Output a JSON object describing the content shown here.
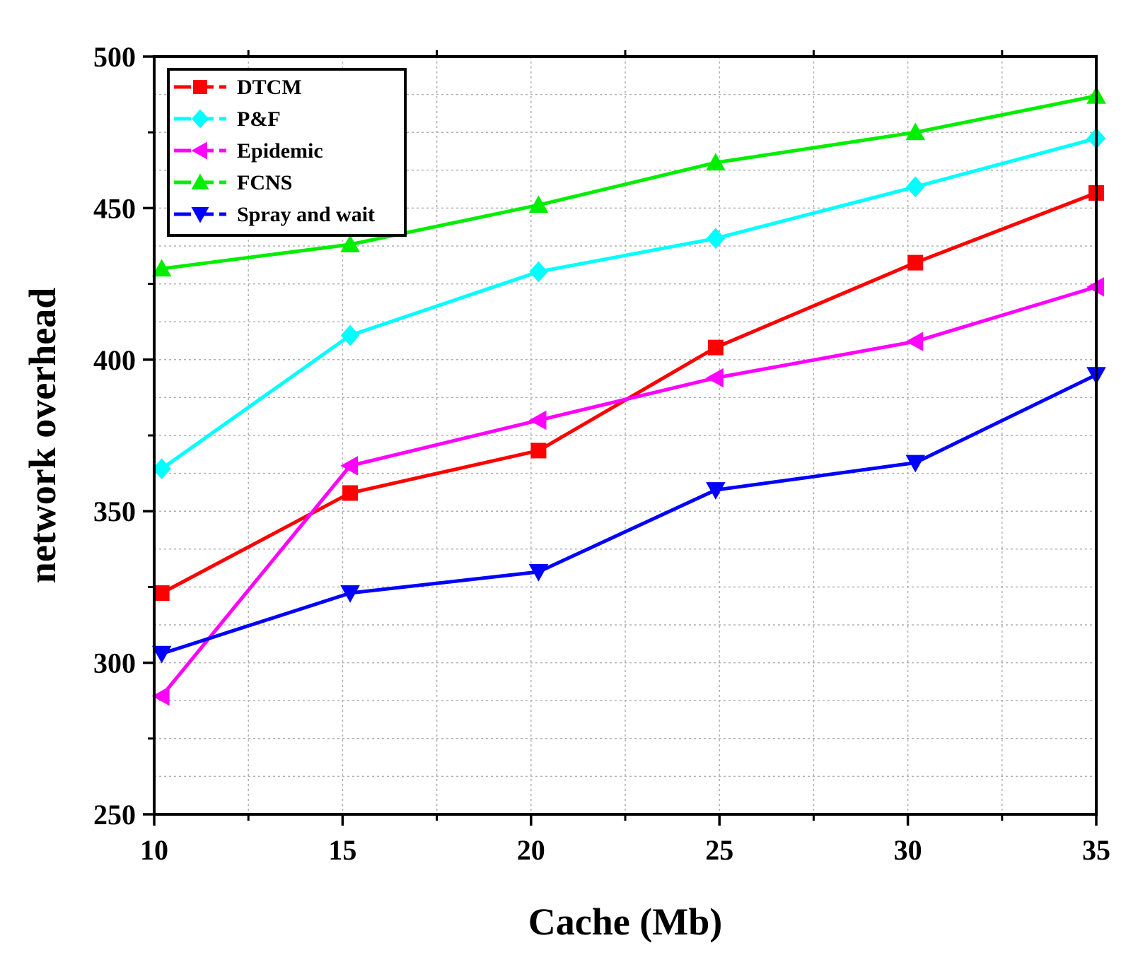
{
  "chart_data": {
    "type": "line",
    "title": "",
    "xlabel": "Cache (Mb)",
    "ylabel": "network overhead",
    "xlim": [
      10,
      35
    ],
    "ylim": [
      250,
      500
    ],
    "x_ticks": [
      "10",
      "15",
      "20",
      "25",
      "30",
      "35"
    ],
    "y_ticks": [
      "250",
      "300",
      "350",
      "400",
      "450",
      "500"
    ],
    "grid": true,
    "legend_position": "top-left",
    "series": [
      {
        "name": "DTCM",
        "color": "#ff0000",
        "marker": "square",
        "x": [
          10.2,
          15.2,
          20.2,
          24.9,
          30.2,
          35
        ],
        "y": [
          323,
          356,
          370,
          404,
          432,
          455
        ]
      },
      {
        "name": "P&F",
        "color": "#00ffff",
        "marker": "diamond",
        "x": [
          10.2,
          15.2,
          20.2,
          24.9,
          30.2,
          35
        ],
        "y": [
          364,
          408,
          429,
          440,
          457,
          473
        ]
      },
      {
        "name": "Epidemic",
        "color": "#ff00ff",
        "marker": "triangle-left",
        "x": [
          10.2,
          15.2,
          20.2,
          24.9,
          30.2,
          35
        ],
        "y": [
          289,
          365,
          380,
          394,
          406,
          424
        ]
      },
      {
        "name": "FCNS",
        "color": "#00ee00",
        "marker": "triangle-up",
        "x": [
          10.2,
          15.2,
          20.2,
          24.9,
          30.2,
          35
        ],
        "y": [
          430,
          438,
          451,
          465,
          475,
          487
        ]
      },
      {
        "name": "Spray and wait",
        "color": "#0000ff",
        "marker": "triangle-down",
        "x": [
          10.2,
          15.2,
          20.2,
          24.9,
          30.2,
          35
        ],
        "y": [
          303,
          323,
          330,
          357,
          366,
          395
        ]
      }
    ]
  }
}
